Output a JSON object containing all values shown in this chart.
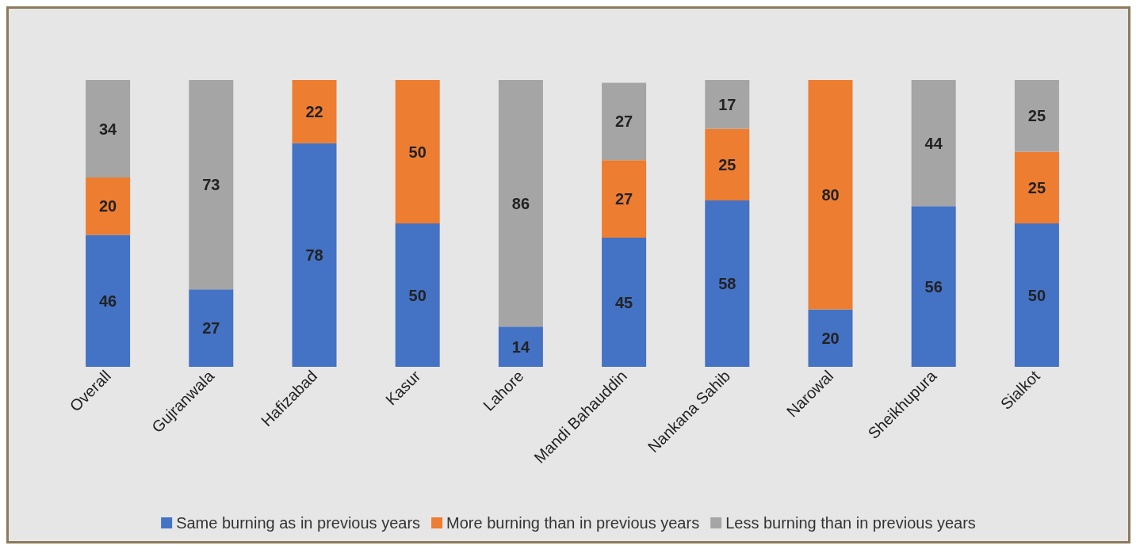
{
  "chart_data": {
    "type": "bar",
    "stacked": true,
    "data_labels": true,
    "legend": "bottom",
    "categories": [
      "Overall",
      "Gujranwala",
      "Hafizabad",
      "Kasur",
      "Lahore",
      "Mandi Bahauddin",
      "Nankana Sahib",
      "Narowal",
      "Sheikhupura",
      "Sialkot"
    ],
    "series": [
      {
        "name": "Same burning as in previous years",
        "color": "#4472c4",
        "values": [
          46,
          27,
          78,
          50,
          14,
          45,
          58,
          20,
          56,
          50
        ]
      },
      {
        "name": "More burning than in previous years",
        "color": "#ed7d31",
        "values": [
          20,
          null,
          22,
          50,
          null,
          27,
          25,
          80,
          null,
          25
        ]
      },
      {
        "name": "Less burning than in previous years",
        "color": "#a5a5a5",
        "values": [
          34,
          73,
          null,
          null,
          86,
          27,
          17,
          null,
          44,
          25
        ]
      }
    ]
  }
}
